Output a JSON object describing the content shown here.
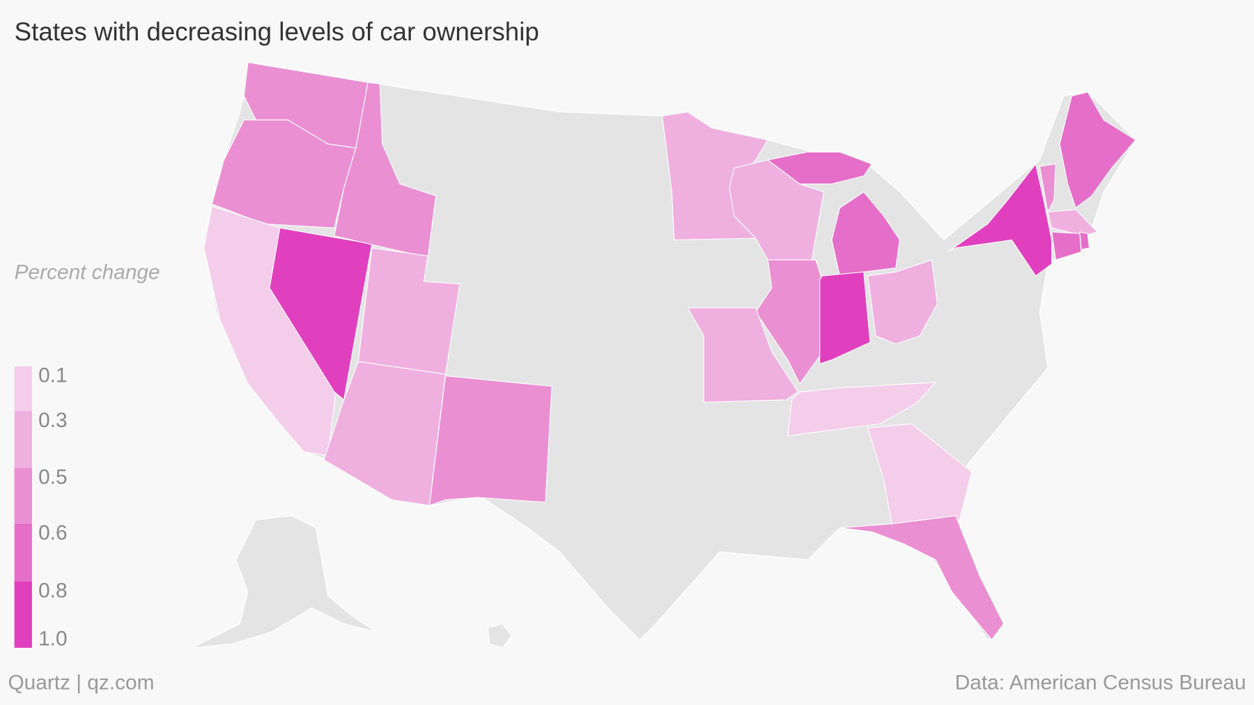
{
  "chart_data": {
    "type": "choropleth",
    "title": "States with decreasing levels of car ownership",
    "legend_title": "Percent change",
    "legend_ticks": [
      0.1,
      0.3,
      0.5,
      0.6,
      0.8,
      {
        "value": 1,
        "label": "1.0"
      }
    ],
    "legend_colors": [
      "#f4cdea",
      "#efb0df",
      "#ea8fd2",
      "#e56fc8",
      "#e040be"
    ],
    "no_data_color": "#e4e4e4",
    "values": [
      0.55,
      0.55,
      0.2,
      0.9,
      0.55,
      0.4,
      0.4,
      0.55,
      0.4,
      0.4,
      0.7,
      0.7,
      0.55,
      0.85,
      0.4,
      0.4,
      0.2,
      0.2,
      0.55,
      0.9,
      0.55,
      0.7,
      0.4,
      0.7,
      0.7
    ],
    "credit": "Quartz | qz.com",
    "source": "Data: American Census Bureau"
  }
}
